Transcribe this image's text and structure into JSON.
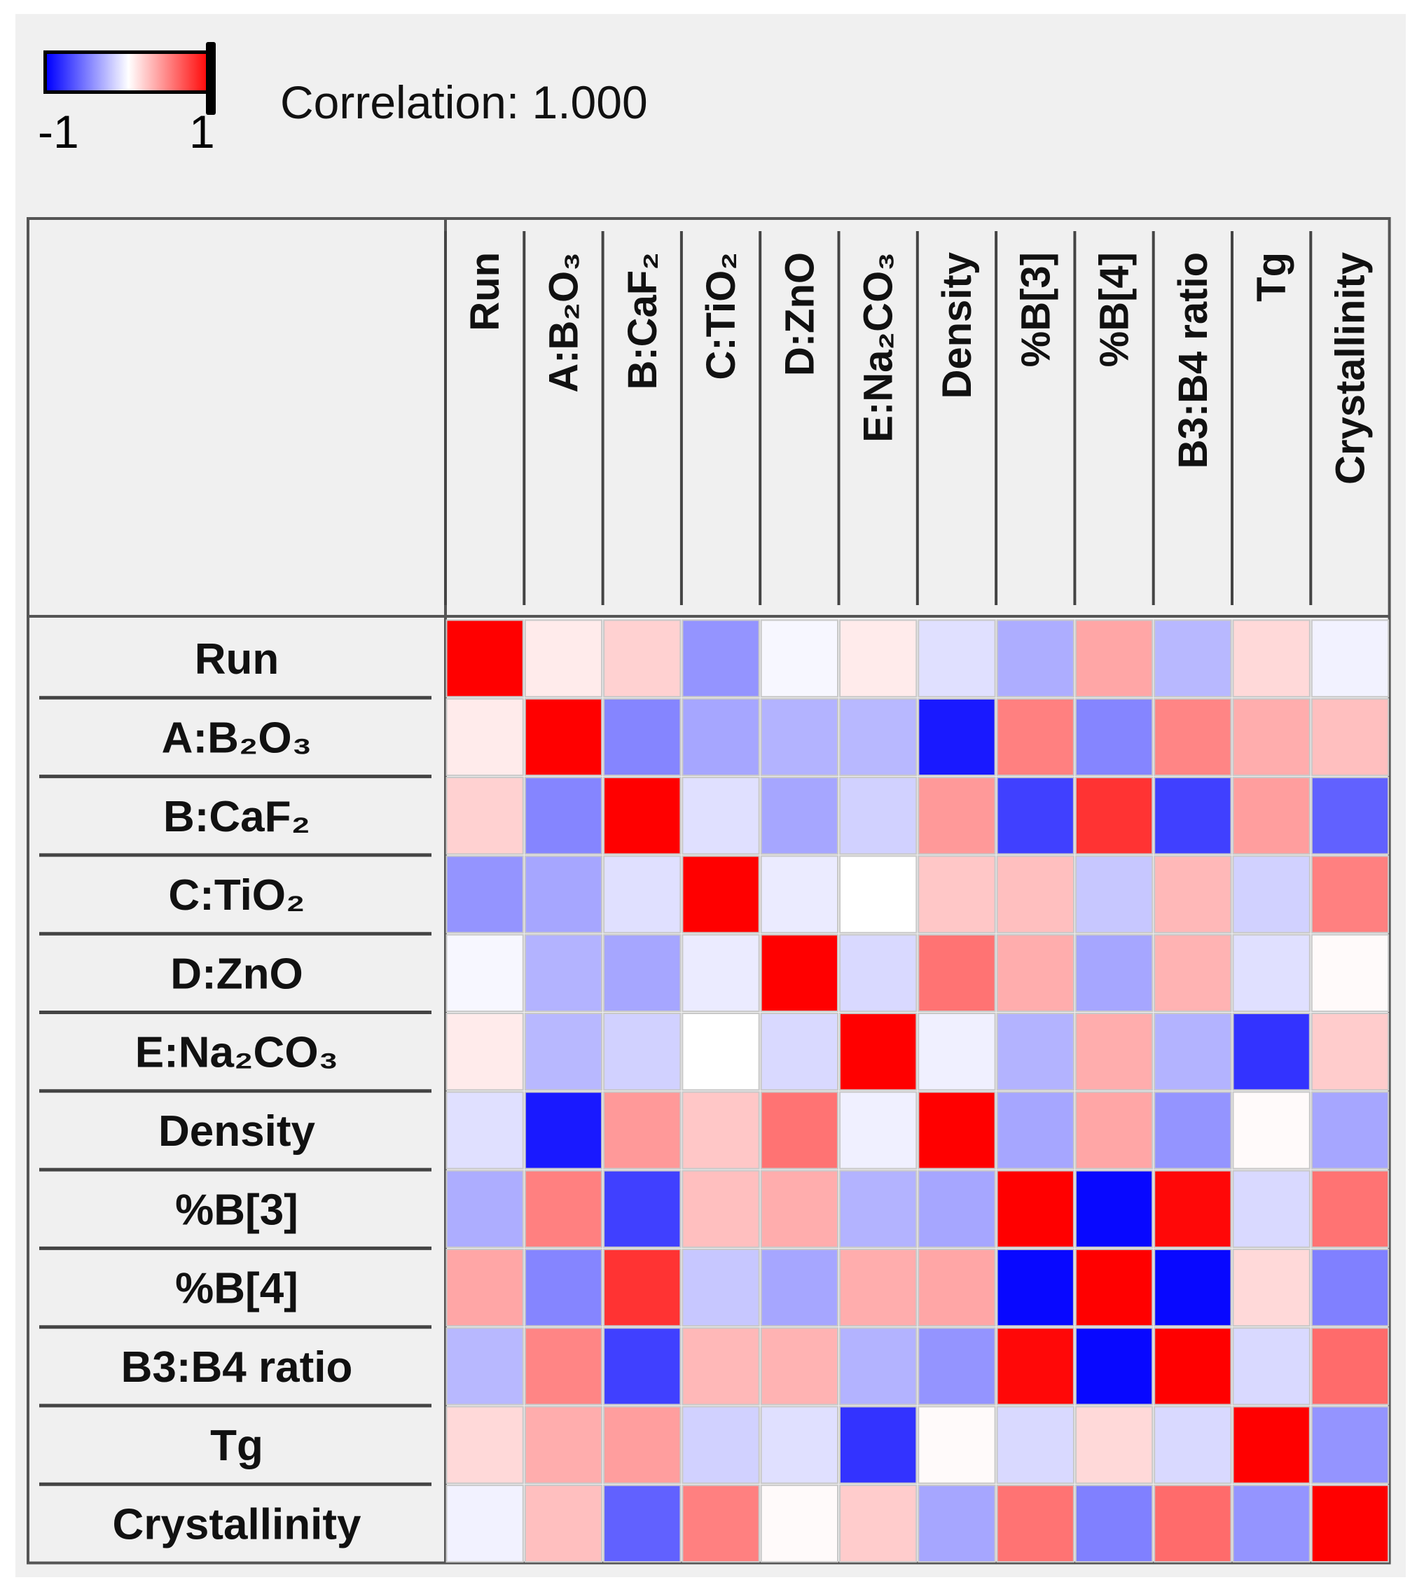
{
  "legend": {
    "min_label": "-1",
    "max_label": "1",
    "colors": [
      "#0000ff",
      "#ffffff",
      "#ff0000"
    ],
    "readout_label": "Correlation: 1.000"
  },
  "chart_data": {
    "type": "heatmap",
    "title": "",
    "xlabel": "",
    "ylabel": "",
    "color_range": [
      -1,
      1
    ],
    "color_scale": {
      "low": "#0000ff",
      "mid": "#ffffff",
      "high": "#ff0000"
    },
    "columns": [
      "Run",
      "A:B₂O₃",
      "B:CaF₂",
      "C:TiO₂",
      "D:ZnO",
      "E:Na₂CO₃",
      "Density",
      "%B[3]",
      "%B[4]",
      "B3:B4 ratio",
      "Tg",
      "Crystallinity"
    ],
    "rows": [
      "Run",
      "A:B₂O₃",
      "B:CaF₂",
      "C:TiO₂",
      "D:ZnO",
      "E:Na₂CO₃",
      "Density",
      "%B[3]",
      "%B[4]",
      "B3:B4 ratio",
      "Tg",
      "Crystallinity"
    ],
    "values": [
      [
        1.0,
        0.08,
        0.18,
        -0.42,
        -0.03,
        0.08,
        -0.12,
        -0.32,
        0.35,
        -0.28,
        0.15,
        -0.05
      ],
      [
        0.08,
        1.0,
        -0.48,
        -0.35,
        -0.3,
        -0.28,
        -0.9,
        0.5,
        -0.48,
        0.48,
        0.32,
        0.25
      ],
      [
        0.18,
        -0.48,
        1.0,
        -0.12,
        -0.35,
        -0.18,
        0.4,
        -0.75,
        0.8,
        -0.75,
        0.38,
        -0.62
      ],
      [
        -0.42,
        -0.35,
        -0.12,
        1.0,
        -0.08,
        0.0,
        0.22,
        0.25,
        -0.22,
        0.28,
        -0.18,
        0.5
      ],
      [
        -0.03,
        -0.3,
        -0.35,
        -0.08,
        1.0,
        -0.15,
        0.55,
        0.32,
        -0.35,
        0.3,
        -0.12,
        0.02
      ],
      [
        0.08,
        -0.28,
        -0.18,
        0.0,
        -0.15,
        1.0,
        -0.06,
        -0.3,
        0.32,
        -0.3,
        -0.8,
        0.2
      ],
      [
        -0.12,
        -0.9,
        0.4,
        0.22,
        0.55,
        -0.06,
        1.0,
        -0.35,
        0.35,
        -0.42,
        0.02,
        -0.35
      ],
      [
        -0.32,
        0.5,
        -0.75,
        0.25,
        0.32,
        -0.3,
        -0.35,
        1.0,
        -0.97,
        0.97,
        -0.15,
        0.55
      ],
      [
        0.35,
        -0.48,
        0.8,
        -0.22,
        -0.35,
        0.32,
        0.35,
        -0.97,
        1.0,
        -0.97,
        0.15,
        -0.5
      ],
      [
        -0.28,
        0.48,
        -0.75,
        0.28,
        0.3,
        -0.3,
        -0.42,
        0.97,
        -0.97,
        1.0,
        -0.15,
        0.58
      ],
      [
        0.15,
        0.32,
        0.38,
        -0.18,
        -0.12,
        -0.8,
        0.02,
        -0.15,
        0.15,
        -0.15,
        1.0,
        -0.42
      ],
      [
        -0.05,
        0.25,
        -0.62,
        0.5,
        0.02,
        0.2,
        -0.35,
        0.55,
        -0.5,
        0.58,
        -0.42,
        1.0
      ]
    ]
  }
}
